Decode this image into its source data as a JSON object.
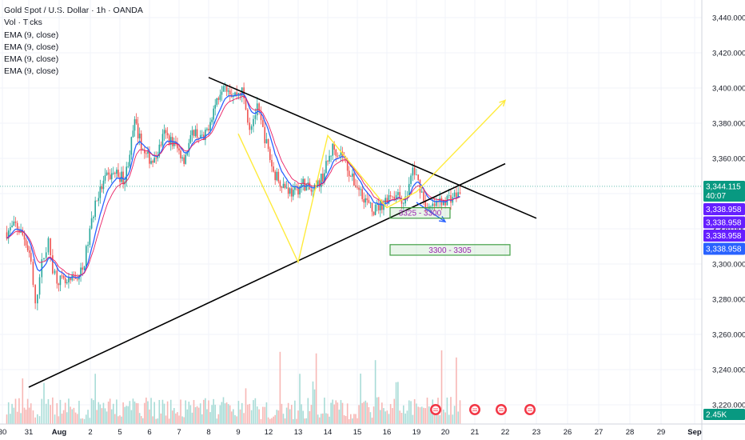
{
  "legend": {
    "title": "Gold Spot / U.S. Dollar · 1h · OANDA",
    "lines": [
      "Vol · Ticks",
      "EMA (9, close)",
      "EMA (9, close)",
      "EMA (9, close)",
      "EMA (9, close)"
    ]
  },
  "colors": {
    "up": "#26a69a",
    "down": "#ef5350",
    "ema": "#2962ff",
    "trend": "#000000",
    "projection_up": "#ffeb3b",
    "projection_down": "#2962ff",
    "zone_border": "#43a047",
    "zone_text": "#9c27b0",
    "current_price": "#089981",
    "ema_label": "#651fff",
    "ema_label_alt": "#2962ff"
  },
  "current_price": {
    "value": "3,344.115",
    "countdown": "40:07"
  },
  "ema_labels": [
    "3,338.958",
    "3,338.958",
    "3,338.958",
    "3,338.958"
  ],
  "volume_label": "2.45K",
  "zones": [
    {
      "label": "3325 - 3300"
    },
    {
      "label": "3300 - 3305"
    }
  ],
  "chart_data": {
    "type": "candlestick",
    "title": "Gold Spot / U.S. Dollar · 1h · OANDA",
    "y_ticks": [
      "3,440.000",
      "3,420.000",
      "3,400.000",
      "3,380.000",
      "3,360.000",
      "3,340.000",
      "3,320.000",
      "3,300.000",
      "3,280.000",
      "3,260.000",
      "3,240.000",
      "3,220.000"
    ],
    "y_tick_values": [
      3440,
      3420,
      3400,
      3380,
      3360,
      3340,
      3320,
      3300,
      3280,
      3260,
      3240,
      3220
    ],
    "x_ticks": [
      "30",
      "31",
      "Aug",
      "2",
      "5",
      "6",
      "7",
      "8",
      "9",
      "12",
      "13",
      "14",
      "15",
      "16",
      "19",
      "20",
      "21",
      "22",
      "23",
      "26",
      "27",
      "28",
      "29",
      "Sep"
    ],
    "ylim": [
      3212,
      3450
    ],
    "close_path": [
      [
        "30",
        3318
      ],
      [
        "30",
        3322
      ],
      [
        "30",
        3315
      ],
      [
        "31",
        3300
      ],
      [
        "31",
        3275
      ],
      [
        "31",
        3295
      ],
      [
        "31",
        3305
      ],
      [
        "31",
        3312
      ],
      [
        "31",
        3298
      ],
      [
        "31",
        3292
      ],
      [
        "Aug",
        3288
      ],
      [
        "Aug",
        3296
      ],
      [
        "2",
        3335
      ],
      [
        "2",
        3348
      ],
      [
        "2",
        3352
      ],
      [
        "5",
        3348
      ],
      [
        "5",
        3380
      ],
      [
        "5",
        3362
      ],
      [
        "6",
        3358
      ],
      [
        "6",
        3374
      ],
      [
        "6",
        3368
      ],
      [
        "7",
        3360
      ],
      [
        "7",
        3376
      ],
      [
        "7",
        3370
      ],
      [
        "8",
        3388
      ],
      [
        "8",
        3404
      ],
      [
        "8",
        3396
      ],
      [
        "9",
        3398
      ],
      [
        "9",
        3378
      ],
      [
        "9",
        3388
      ],
      [
        "9",
        3372
      ],
      [
        "12",
        3352
      ],
      [
        "12",
        3345
      ],
      [
        "12",
        3340
      ],
      [
        "13",
        3346
      ],
      [
        "13",
        3340
      ],
      [
        "13",
        3350
      ],
      [
        "14",
        3366
      ],
      [
        "14",
        3362
      ],
      [
        "14",
        3348
      ],
      [
        "15",
        3340
      ],
      [
        "15",
        3330
      ],
      [
        "15",
        3334
      ],
      [
        "16",
        3340
      ],
      [
        "16",
        3338
      ],
      [
        "16",
        3336
      ],
      [
        "16",
        3354
      ],
      [
        "19",
        3344
      ],
      [
        "19",
        3330
      ],
      [
        "19",
        3333
      ],
      [
        "19",
        3336
      ],
      [
        "20",
        3340
      ]
    ],
    "trendlines": [
      {
        "from": [
          "31",
          3230
        ],
        "to": [
          "22",
          3357
        ]
      },
      {
        "from": [
          "8",
          3406
        ],
        "to": [
          "23",
          3326
        ]
      }
    ],
    "projections": {
      "up": [
        [
          "9",
          3374
        ],
        [
          "13",
          3301
        ],
        [
          "14",
          3373
        ],
        [
          "16",
          3332
        ],
        [
          "19",
          3341
        ],
        [
          "22",
          3393
        ]
      ],
      "down": [
        [
          "19",
          3335
        ],
        [
          "20",
          3324
        ]
      ]
    },
    "zones": [
      {
        "label": "3325 - 3300",
        "from": "16",
        "to": "20",
        "y_top": 3332,
        "y_bottom": 3326
      },
      {
        "label": "3300 - 3305",
        "from": "16",
        "to": "22",
        "y_top": 3311,
        "y_bottom": 3305
      }
    ],
    "grid": true
  }
}
